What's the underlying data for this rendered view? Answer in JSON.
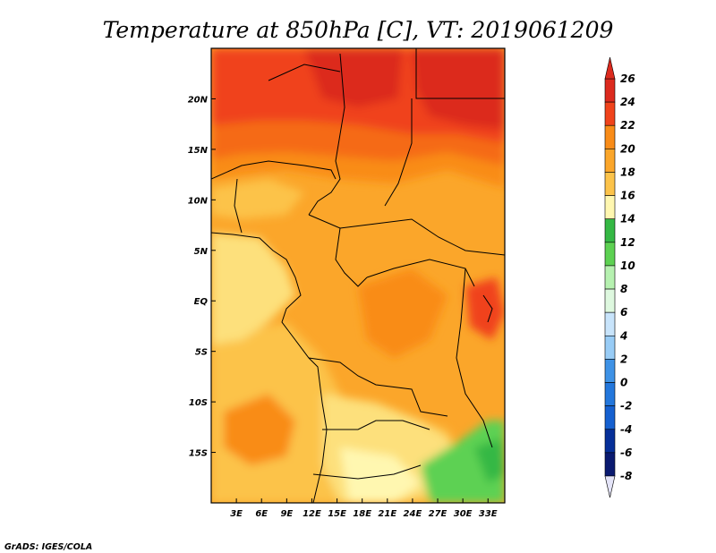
{
  "title": "Temperature at 850hPa [C], VT: 2019061209",
  "credit": "GrADS: IGES/COLA",
  "map": {
    "lat_labels": [
      "20N",
      "15N",
      "10N",
      "5N",
      "EQ",
      "5S",
      "10S",
      "15S"
    ],
    "lon_labels": [
      "3E",
      "6E",
      "9E",
      "12E",
      "15E",
      "18E",
      "21E",
      "24E",
      "27E",
      "30E",
      "33E"
    ],
    "lat_range": [
      -20,
      25
    ],
    "lon_range": [
      0,
      35
    ]
  },
  "colorbar": {
    "levels": [
      "26",
      "24",
      "22",
      "20",
      "18",
      "16",
      "14",
      "12",
      "10",
      "8",
      "6",
      "4",
      "2",
      "0",
      "-2",
      "-4",
      "-6",
      "-8"
    ],
    "colors_top_to_bottom": [
      "#dc2a1e",
      "#f0431b",
      "#f56a16",
      "#f98c18",
      "#fba62a",
      "#fcc34a",
      "#fde07b",
      "#fff7b0",
      "#35b844",
      "#5dd152",
      "#8be483",
      "#b6f1b0",
      "#def8df",
      "#c8e4fb",
      "#98ccf6",
      "#6ab0ef",
      "#3e92e6",
      "#2377dc",
      "#1560d0",
      "#0b47b8",
      "#062f99",
      "#0a1a70"
    ]
  },
  "colors": {
    "north_red": "#dc2a1e",
    "orange_red": "#f0431b",
    "orange": "#f98c18",
    "light_orange": "#fba62a",
    "yellow_orange": "#fcc34a",
    "pale_yellow": "#fde07b",
    "pale": "#fff7b0",
    "green": "#5dd152",
    "dark_green": "#35b844"
  }
}
